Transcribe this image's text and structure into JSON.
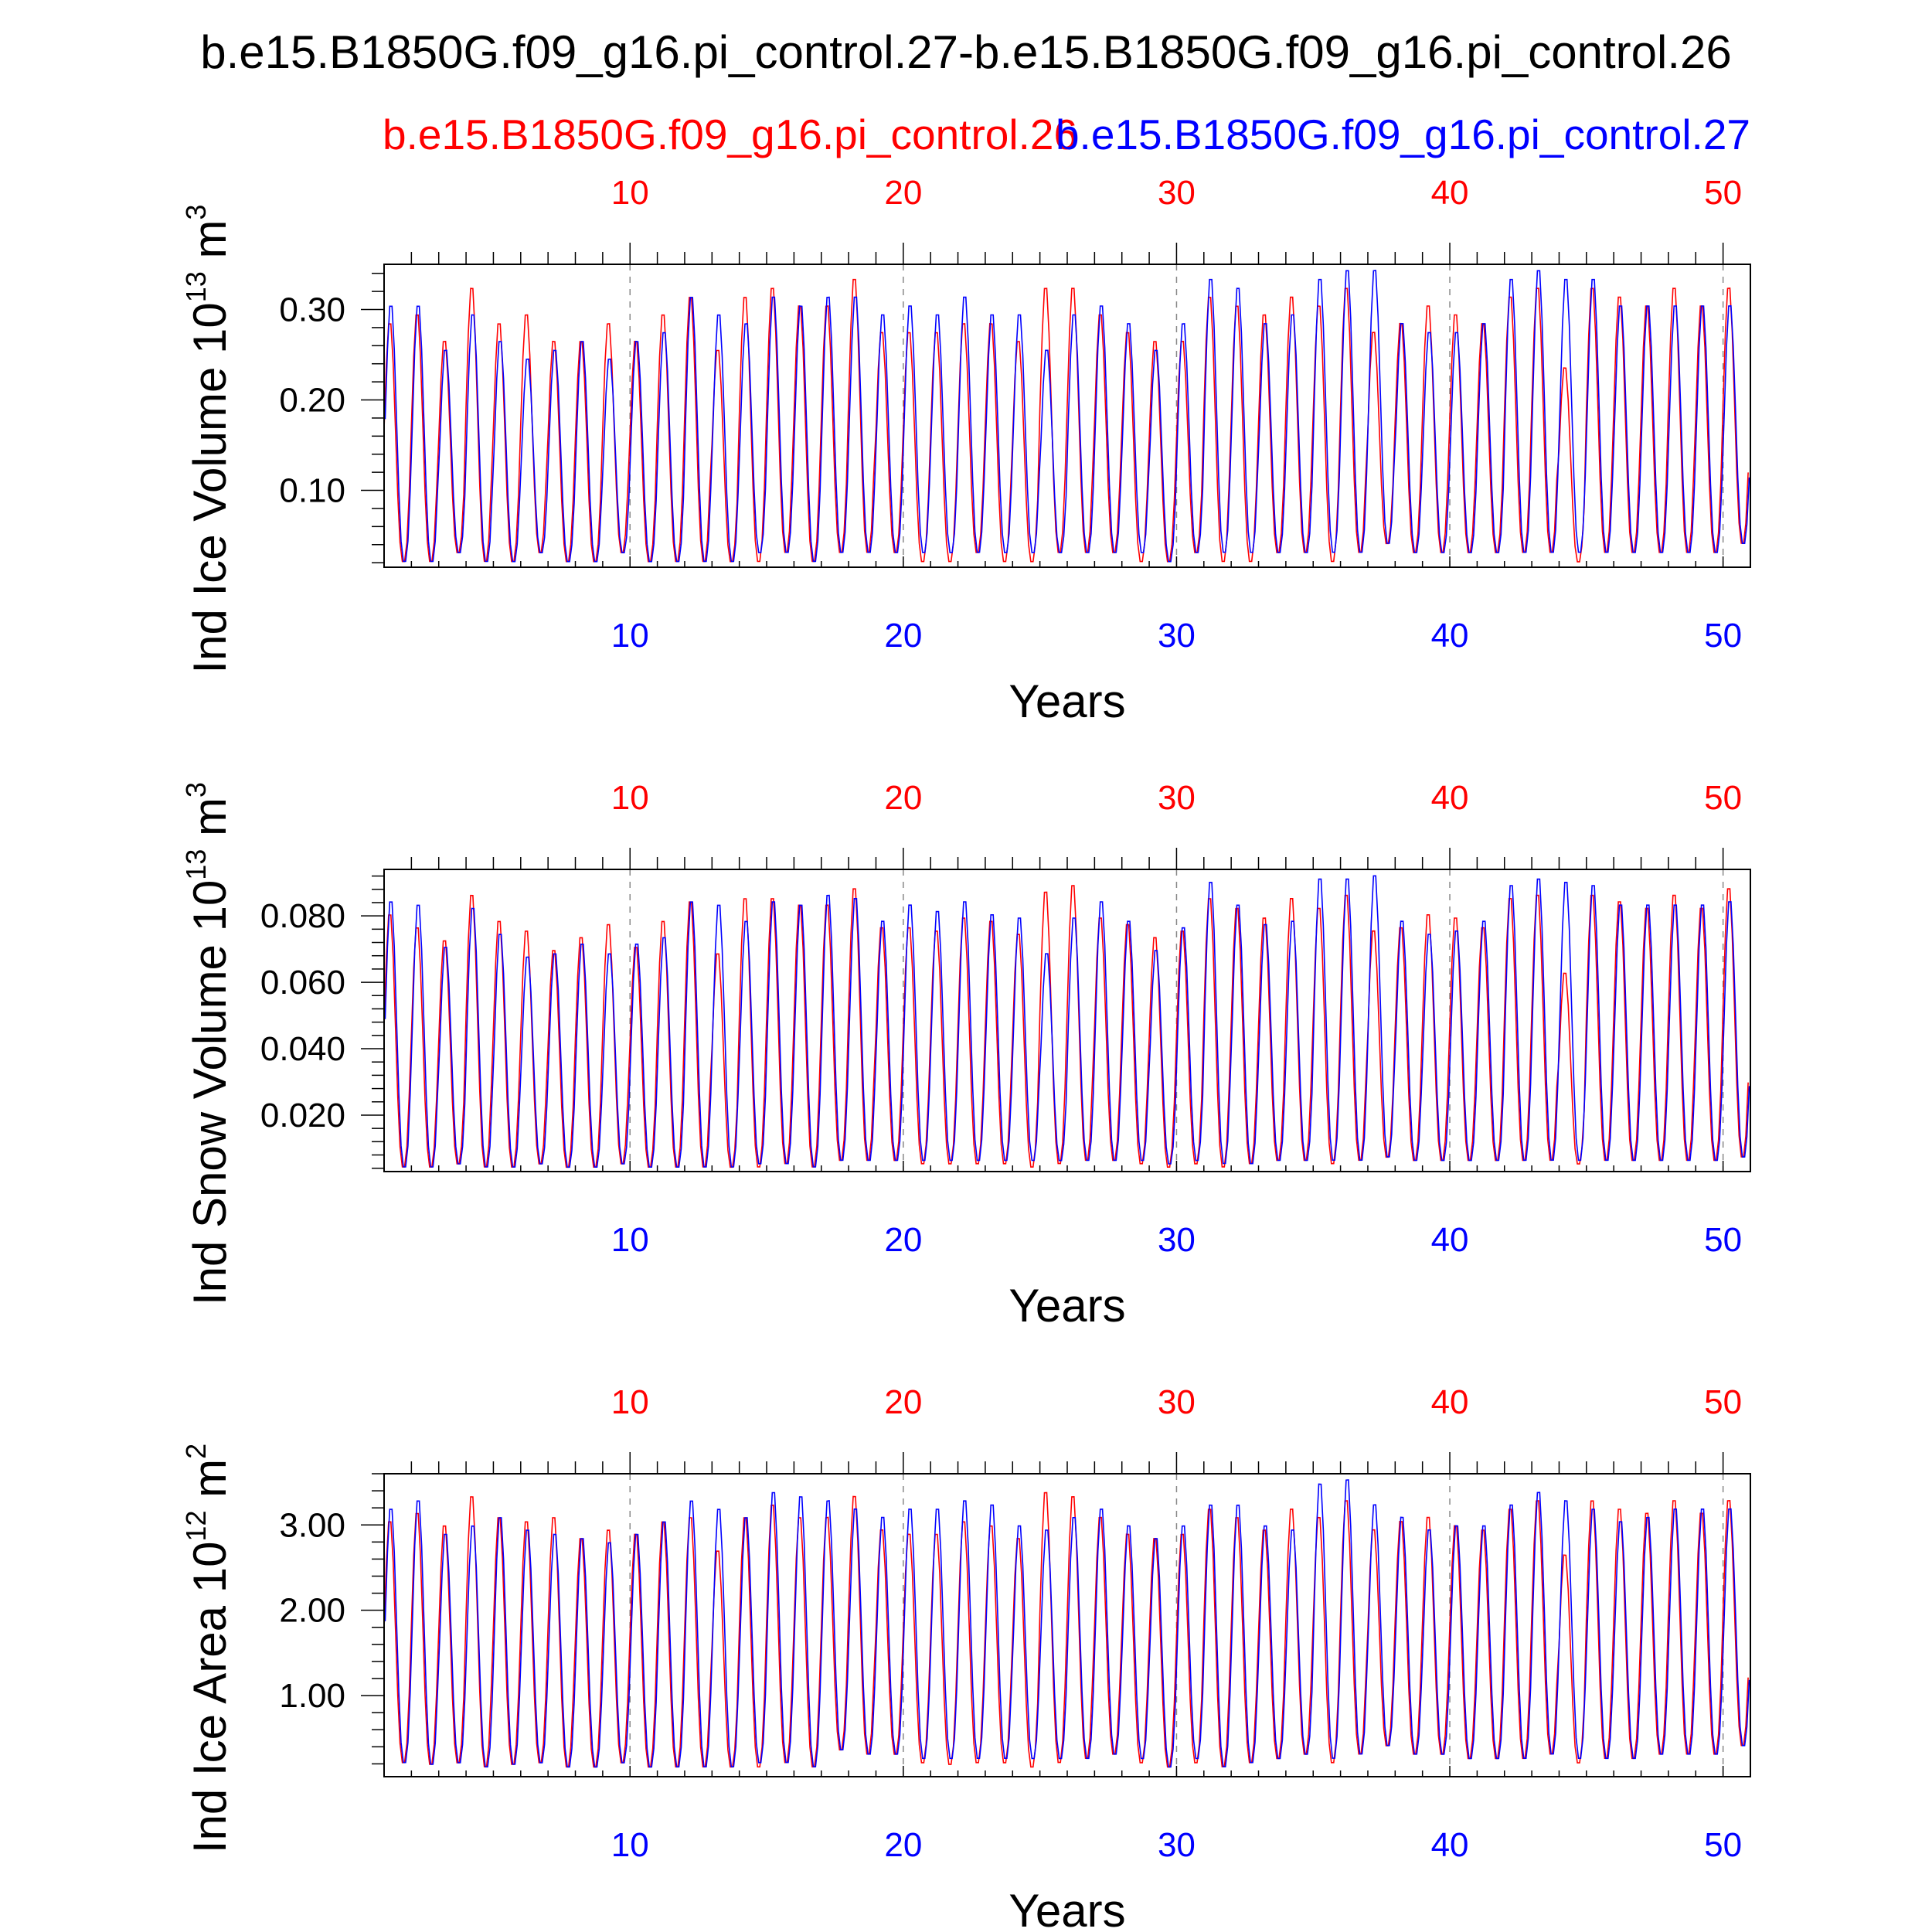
{
  "title": "b.e15.B1850G.f09_g16.pi_control.27-b.e15.B1850G.f09_g16.pi_control.26",
  "colors": {
    "case_a": "#ff0000",
    "case_b": "#0000ff",
    "axis": "#000000",
    "grid": "#888888"
  },
  "legend": {
    "case_a": "b.e15.B1850G.f09_g16.pi_control.26",
    "case_b": "b.e15.B1850G.f09_g16.pi_control.27"
  },
  "chart_data": [
    {
      "type": "line",
      "ylabel": "Ind Ice Volume 10",
      "ylabel_exp": "13",
      "ylabel_unit": " m",
      "ylabel_unit_exp": "3",
      "xlabel": "Years",
      "xlim": [
        1,
        51
      ],
      "ylim": [
        0.015,
        0.35
      ],
      "yticks": [
        0.1,
        0.2,
        0.3
      ],
      "yticklabels": [
        "0.10",
        "0.20",
        "0.30"
      ],
      "xticks": [
        10,
        20,
        30,
        40,
        50
      ],
      "xticklabels": [
        "10",
        "20",
        "30",
        "40",
        "50"
      ],
      "grid_vertical_dashed": true,
      "series": [
        {
          "name": "b.e15.B1850G.f09_g16.pi_control.26",
          "color": "#ff0000",
          "annual_max": [
            0.29,
            0.3,
            0.27,
            0.33,
            0.29,
            0.3,
            0.27,
            0.27,
            0.29,
            0.27,
            0.3,
            0.32,
            0.26,
            0.32,
            0.33,
            0.31,
            0.31,
            0.34,
            0.28,
            0.28,
            0.28,
            0.29,
            0.29,
            0.27,
            0.33,
            0.33,
            0.3,
            0.28,
            0.27,
            0.27,
            0.32,
            0.31,
            0.3,
            0.32,
            0.31,
            0.33,
            0.28,
            0.29,
            0.31,
            0.3,
            0.29,
            0.32,
            0.33,
            0.24,
            0.33,
            0.32,
            0.31,
            0.33,
            0.31,
            0.33
          ],
          "annual_min": [
            0.02,
            0.02,
            0.03,
            0.02,
            0.02,
            0.03,
            0.02,
            0.02,
            0.03,
            0.02,
            0.02,
            0.02,
            0.02,
            0.02,
            0.03,
            0.02,
            0.03,
            0.03,
            0.03,
            0.02,
            0.02,
            0.03,
            0.02,
            0.02,
            0.03,
            0.03,
            0.03,
            0.02,
            0.02,
            0.03,
            0.02,
            0.02,
            0.03,
            0.03,
            0.02,
            0.03,
            0.04,
            0.03,
            0.03,
            0.03,
            0.03,
            0.03,
            0.03,
            0.02,
            0.03,
            0.03,
            0.03,
            0.03,
            0.03,
            0.04
          ]
        },
        {
          "name": "b.e15.B1850G.f09_g16.pi_control.27",
          "color": "#0000ff",
          "annual_max": [
            0.31,
            0.31,
            0.26,
            0.3,
            0.27,
            0.25,
            0.26,
            0.27,
            0.25,
            0.27,
            0.28,
            0.32,
            0.3,
            0.29,
            0.32,
            0.31,
            0.32,
            0.32,
            0.3,
            0.31,
            0.3,
            0.32,
            0.3,
            0.3,
            0.26,
            0.3,
            0.31,
            0.29,
            0.26,
            0.29,
            0.34,
            0.33,
            0.29,
            0.3,
            0.34,
            0.35,
            0.35,
            0.29,
            0.28,
            0.28,
            0.29,
            0.34,
            0.35,
            0.34,
            0.34,
            0.31,
            0.31,
            0.31,
            0.31,
            0.31
          ],
          "annual_min": [
            0.02,
            0.02,
            0.03,
            0.02,
            0.02,
            0.03,
            0.02,
            0.02,
            0.03,
            0.02,
            0.02,
            0.02,
            0.02,
            0.03,
            0.03,
            0.02,
            0.03,
            0.03,
            0.03,
            0.03,
            0.03,
            0.03,
            0.03,
            0.03,
            0.03,
            0.03,
            0.03,
            0.03,
            0.02,
            0.03,
            0.03,
            0.03,
            0.03,
            0.03,
            0.03,
            0.03,
            0.04,
            0.03,
            0.03,
            0.03,
            0.03,
            0.03,
            0.03,
            0.03,
            0.03,
            0.03,
            0.03,
            0.03,
            0.03,
            0.04
          ]
        }
      ]
    },
    {
      "type": "line",
      "ylabel": "Ind Snow Volume 10",
      "ylabel_exp": "13",
      "ylabel_unit": " m",
      "ylabel_unit_exp": "3",
      "xlabel": "Years",
      "xlim": [
        1,
        51
      ],
      "ylim": [
        0.003,
        0.094
      ],
      "yticks": [
        0.02,
        0.04,
        0.06,
        0.08
      ],
      "yticklabels": [
        "0.020",
        "0.040",
        "0.060",
        "0.080"
      ],
      "xticks": [
        10,
        20,
        30,
        40,
        50
      ],
      "xticklabels": [
        "10",
        "20",
        "30",
        "40",
        "50"
      ],
      "grid_vertical_dashed": true,
      "series": [
        {
          "name": "b.e15.B1850G.f09_g16.pi_control.26",
          "color": "#ff0000",
          "annual_max": [
            0.082,
            0.078,
            0.074,
            0.088,
            0.08,
            0.077,
            0.071,
            0.075,
            0.079,
            0.072,
            0.08,
            0.086,
            0.07,
            0.087,
            0.087,
            0.085,
            0.085,
            0.09,
            0.078,
            0.078,
            0.077,
            0.081,
            0.08,
            0.076,
            0.089,
            0.091,
            0.081,
            0.079,
            0.075,
            0.077,
            0.087,
            0.084,
            0.081,
            0.087,
            0.084,
            0.088,
            0.077,
            0.078,
            0.082,
            0.081,
            0.078,
            0.087,
            0.088,
            0.064,
            0.088,
            0.086,
            0.084,
            0.088,
            0.084,
            0.09
          ],
          "annual_min": [
            0.004,
            0.004,
            0.005,
            0.004,
            0.004,
            0.005,
            0.004,
            0.004,
            0.005,
            0.004,
            0.004,
            0.004,
            0.004,
            0.004,
            0.005,
            0.004,
            0.006,
            0.006,
            0.006,
            0.005,
            0.005,
            0.005,
            0.005,
            0.004,
            0.005,
            0.006,
            0.006,
            0.005,
            0.004,
            0.005,
            0.004,
            0.005,
            0.006,
            0.006,
            0.005,
            0.006,
            0.007,
            0.006,
            0.006,
            0.006,
            0.006,
            0.006,
            0.006,
            0.005,
            0.006,
            0.006,
            0.006,
            0.006,
            0.006,
            0.007
          ]
        },
        {
          "name": "b.e15.B1850G.f09_g16.pi_control.27",
          "color": "#0000ff",
          "annual_max": [
            0.086,
            0.085,
            0.072,
            0.084,
            0.076,
            0.069,
            0.07,
            0.073,
            0.07,
            0.073,
            0.075,
            0.086,
            0.085,
            0.08,
            0.086,
            0.085,
            0.088,
            0.087,
            0.08,
            0.085,
            0.083,
            0.086,
            0.082,
            0.081,
            0.07,
            0.081,
            0.086,
            0.08,
            0.071,
            0.078,
            0.092,
            0.085,
            0.079,
            0.08,
            0.093,
            0.093,
            0.094,
            0.08,
            0.076,
            0.077,
            0.08,
            0.091,
            0.093,
            0.092,
            0.091,
            0.085,
            0.085,
            0.085,
            0.085,
            0.086
          ],
          "annual_min": [
            0.004,
            0.004,
            0.005,
            0.004,
            0.004,
            0.005,
            0.004,
            0.004,
            0.005,
            0.004,
            0.004,
            0.004,
            0.004,
            0.005,
            0.005,
            0.004,
            0.006,
            0.006,
            0.006,
            0.006,
            0.006,
            0.006,
            0.006,
            0.006,
            0.006,
            0.006,
            0.006,
            0.006,
            0.005,
            0.006,
            0.005,
            0.005,
            0.006,
            0.006,
            0.006,
            0.006,
            0.007,
            0.006,
            0.006,
            0.006,
            0.006,
            0.006,
            0.006,
            0.006,
            0.006,
            0.006,
            0.006,
            0.006,
            0.006,
            0.007
          ]
        }
      ]
    },
    {
      "type": "line",
      "ylabel": "Ind Ice Area 10",
      "ylabel_exp": "12",
      "ylabel_unit": " m",
      "ylabel_unit_exp": "2",
      "xlabel": "Years",
      "xlim": [
        1,
        51
      ],
      "ylim": [
        0.05,
        3.6
      ],
      "yticks": [
        1.0,
        2.0,
        3.0
      ],
      "yticklabels": [
        "1.00",
        "2.00",
        "3.00"
      ],
      "xticks": [
        10,
        20,
        30,
        40,
        50
      ],
      "xticklabels": [
        "10",
        "20",
        "30",
        "40",
        "50"
      ],
      "grid_vertical_dashed": true,
      "series": [
        {
          "name": "b.e15.B1850G.f09_g16.pi_control.26",
          "color": "#ff0000",
          "annual_max": [
            3.1,
            3.2,
            3.05,
            3.4,
            3.15,
            3.1,
            3.15,
            2.9,
            3.0,
            2.95,
            3.1,
            3.15,
            2.75,
            3.15,
            3.3,
            3.15,
            3.15,
            3.4,
            3.0,
            2.95,
            2.95,
            3.1,
            3.05,
            2.9,
            3.45,
            3.4,
            3.15,
            2.95,
            2.9,
            2.95,
            3.25,
            3.15,
            3.0,
            3.25,
            3.15,
            3.35,
            3.0,
            3.1,
            3.15,
            3.05,
            3.0,
            3.25,
            3.35,
            2.7,
            3.35,
            3.25,
            3.2,
            3.35,
            3.2,
            3.35
          ],
          "annual_min": [
            0.2,
            0.18,
            0.2,
            0.15,
            0.18,
            0.2,
            0.15,
            0.15,
            0.2,
            0.15,
            0.15,
            0.15,
            0.15,
            0.15,
            0.2,
            0.15,
            0.35,
            0.3,
            0.3,
            0.2,
            0.18,
            0.2,
            0.2,
            0.15,
            0.2,
            0.25,
            0.3,
            0.2,
            0.15,
            0.2,
            0.15,
            0.2,
            0.25,
            0.3,
            0.2,
            0.3,
            0.4,
            0.3,
            0.3,
            0.25,
            0.25,
            0.25,
            0.3,
            0.2,
            0.25,
            0.25,
            0.3,
            0.3,
            0.3,
            0.4
          ]
        },
        {
          "name": "b.e15.B1850G.f09_g16.pi_control.27",
          "color": "#0000ff",
          "annual_max": [
            3.25,
            3.35,
            2.95,
            3.05,
            3.15,
            3.0,
            2.95,
            2.9,
            2.85,
            2.95,
            3.1,
            3.35,
            3.25,
            3.15,
            3.45,
            3.4,
            3.35,
            3.25,
            3.15,
            3.25,
            3.25,
            3.35,
            3.3,
            3.05,
            3.0,
            3.15,
            3.25,
            3.05,
            2.9,
            3.05,
            3.3,
            3.3,
            3.05,
            3.0,
            3.55,
            3.6,
            3.3,
            3.15,
            3.0,
            3.05,
            3.05,
            3.3,
            3.45,
            3.35,
            3.25,
            3.1,
            3.15,
            3.25,
            3.25,
            3.25
          ],
          "annual_min": [
            0.2,
            0.18,
            0.2,
            0.15,
            0.18,
            0.2,
            0.15,
            0.15,
            0.2,
            0.15,
            0.15,
            0.15,
            0.15,
            0.2,
            0.2,
            0.15,
            0.35,
            0.3,
            0.3,
            0.25,
            0.25,
            0.25,
            0.25,
            0.25,
            0.25,
            0.25,
            0.3,
            0.25,
            0.15,
            0.25,
            0.15,
            0.2,
            0.25,
            0.3,
            0.25,
            0.3,
            0.4,
            0.3,
            0.3,
            0.25,
            0.25,
            0.25,
            0.3,
            0.25,
            0.25,
            0.25,
            0.3,
            0.3,
            0.3,
            0.4
          ]
        }
      ]
    }
  ]
}
